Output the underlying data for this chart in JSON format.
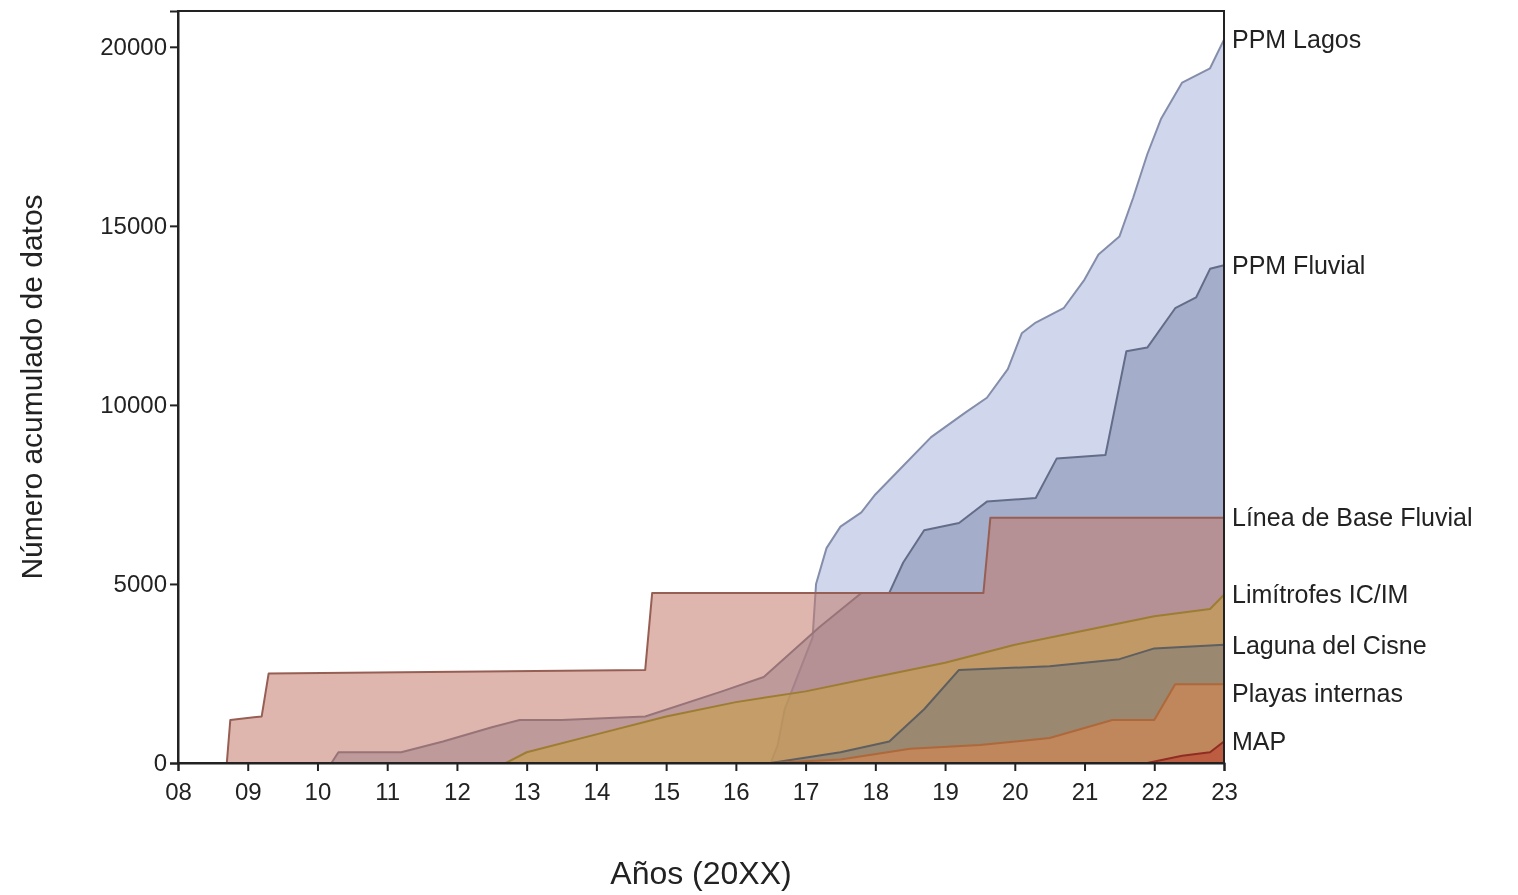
{
  "chart_data": {
    "type": "area",
    "xlabel": "Años (20XX)",
    "ylabel": "Número acumulado de datos",
    "xlim": [
      2008,
      2023
    ],
    "ylim": [
      0,
      21000
    ],
    "xticks": [
      {
        "value": 2008,
        "label": "08"
      },
      {
        "value": 2009,
        "label": "09"
      },
      {
        "value": 2010,
        "label": "10"
      },
      {
        "value": 2011,
        "label": "11"
      },
      {
        "value": 2012,
        "label": "12"
      },
      {
        "value": 2013,
        "label": "13"
      },
      {
        "value": 2014,
        "label": "14"
      },
      {
        "value": 2015,
        "label": "15"
      },
      {
        "value": 2016,
        "label": "16"
      },
      {
        "value": 2017,
        "label": "17"
      },
      {
        "value": 2018,
        "label": "18"
      },
      {
        "value": 2019,
        "label": "19"
      },
      {
        "value": 2020,
        "label": "20"
      },
      {
        "value": 2021,
        "label": "21"
      },
      {
        "value": 2022,
        "label": "22"
      },
      {
        "value": 2023,
        "label": "23"
      }
    ],
    "yticks": [
      0,
      5000,
      10000,
      15000,
      20000
    ],
    "legend": "right",
    "series": [
      {
        "name": "PPM Lagos",
        "color": "#a9b6dc",
        "x": [
          2016.5,
          2016.6,
          2016.7,
          2016.9,
          2017.1,
          2017.15,
          2017.3,
          2017.5,
          2017.8,
          2018.0,
          2018.3,
          2018.8,
          2019.3,
          2019.6,
          2019.9,
          2020.1,
          2020.3,
          2020.7,
          2021.0,
          2021.2,
          2021.5,
          2021.7,
          2021.9,
          2022.1,
          2022.4,
          2022.8,
          2023.0
        ],
        "values": [
          0,
          500,
          1500,
          2500,
          3500,
          5000,
          6000,
          6600,
          7000,
          7500,
          8100,
          9100,
          9800,
          10200,
          11000,
          12000,
          12300,
          12700,
          13500,
          14200,
          14700,
          15800,
          17000,
          18000,
          19000,
          19400,
          20200
        ]
      },
      {
        "name": "PPM Fluvial",
        "color": "#7f8caf",
        "x": [
          2010.2,
          2010.3,
          2011.2,
          2011.8,
          2012.5,
          2012.9,
          2013.5,
          2014.7,
          2015.8,
          2016.4,
          2016.8,
          2017.2,
          2017.8,
          2018.2,
          2018.4,
          2018.7,
          2019.2,
          2019.6,
          2020.3,
          2020.6,
          2021.3,
          2021.6,
          2021.9,
          2022.3,
          2022.6,
          2022.8,
          2023.0
        ],
        "values": [
          0,
          300,
          300,
          600,
          1000,
          1200,
          1200,
          1300,
          2000,
          2400,
          3100,
          3800,
          4750,
          4750,
          5600,
          6500,
          6700,
          7300,
          7400,
          8500,
          8600,
          11500,
          11600,
          12700,
          13000,
          13800,
          13900
        ]
      },
      {
        "name": "Línea de Base Fluvial",
        "color": "#c27a6c",
        "x": [
          2008.7,
          2008.75,
          2009.2,
          2009.3,
          2014.7,
          2014.8,
          2019.55,
          2019.65,
          2023.0
        ],
        "values": [
          0,
          1200,
          1300,
          2500,
          2600,
          4750,
          4750,
          6850,
          6850
        ]
      },
      {
        "name": "Limítrofes IC/IM",
        "color": "#c9a040",
        "x": [
          2012.7,
          2013.0,
          2014.0,
          2015.0,
          2016.0,
          2017.0,
          2018.0,
          2019.0,
          2020.0,
          2021.0,
          2022.0,
          2022.8,
          2023.0
        ],
        "values": [
          0,
          300,
          800,
          1300,
          1700,
          2000,
          2400,
          2800,
          3300,
          3700,
          4100,
          4300,
          4700
        ]
      },
      {
        "name": "Laguna del Cisne",
        "color": "#7a7a7a",
        "x": [
          2016.5,
          2017.5,
          2018.2,
          2018.7,
          2019.2,
          2020.5,
          2021.5,
          2022.0,
          2023.0
        ],
        "values": [
          0,
          300,
          600,
          1500,
          2600,
          2700,
          2900,
          3200,
          3300
        ]
      },
      {
        "name": "Playas internas",
        "color": "#e0864a",
        "x": [
          2016.5,
          2017.5,
          2018.5,
          2019.5,
          2020.5,
          2021.4,
          2022.0,
          2022.3,
          2023.0
        ],
        "values": [
          0,
          100,
          400,
          500,
          700,
          1200,
          1200,
          2200,
          2200
        ]
      },
      {
        "name": "MAP",
        "color": "#b83a2c",
        "x": [
          2021.9,
          2022.4,
          2022.8,
          2023.0
        ],
        "values": [
          0,
          200,
          300,
          600
        ]
      }
    ]
  }
}
